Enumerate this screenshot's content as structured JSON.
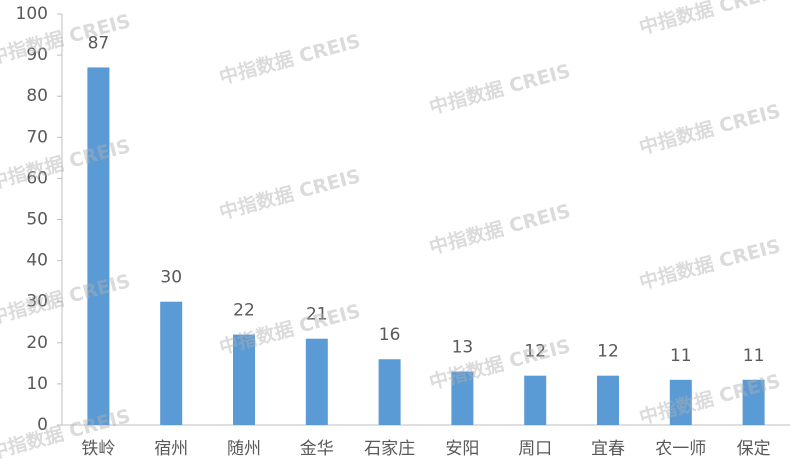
{
  "chart_data": {
    "type": "bar",
    "categories": [
      "铁岭",
      "宿州",
      "随州",
      "金华",
      "石家庄",
      "安阳",
      "周口",
      "宜春",
      "农一师",
      "保定"
    ],
    "values": [
      87,
      30,
      22,
      21,
      16,
      13,
      12,
      12,
      11,
      11
    ],
    "color": "#5b9bd5",
    "ylim": [
      0,
      100
    ],
    "yticks": [
      0,
      10,
      20,
      30,
      40,
      50,
      60,
      70,
      80,
      90,
      100
    ],
    "grid": false,
    "watermark": "中指数据 CREIS"
  }
}
